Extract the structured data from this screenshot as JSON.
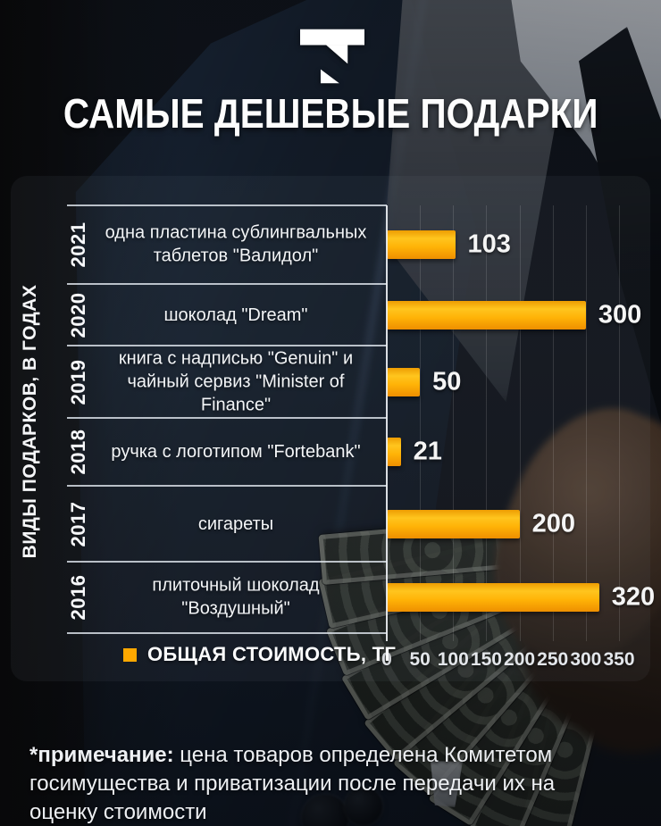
{
  "header": {
    "title": "САМЫЕ ДЕШЕВЫЕ ПОДАРКИ",
    "logo": "tengrinews-t-logo"
  },
  "chart_data": {
    "type": "bar",
    "orientation": "horizontal",
    "title": "САМЫЕ ДЕШЕВЫЕ ПОДАРКИ",
    "ylabel": "ВИДЫ ПОДАРКОВ, В ГОДАХ",
    "xlim": [
      0,
      350
    ],
    "x_ticks": [
      0,
      50,
      100,
      150,
      200,
      250,
      300,
      350
    ],
    "grid": true,
    "legend": {
      "label": "ОБЩАЯ СТОИМОСТЬ, ТГ",
      "color": "#ffa800",
      "position": "bottom"
    },
    "bar_colors": {
      "top": "#ffc51e",
      "bottom": "#ee8f00"
    },
    "categories": [
      "2021",
      "2020",
      "2019",
      "2018",
      "2017",
      "2016"
    ],
    "series": [
      {
        "name": "ОБЩАЯ СТОИМОСТЬ, ТГ",
        "values": [
          103,
          300,
          50,
          21,
          200,
          320
        ]
      }
    ],
    "rows": [
      {
        "year": "2021",
        "gift": "одна пластина сублингвальных таблетов \"Валидол\"",
        "value": 103
      },
      {
        "year": "2020",
        "gift": "шоколад \"Dream\"",
        "value": 300
      },
      {
        "year": "2019",
        "gift": "книга с надписью \"Genuin\" и чайный сервиз \"Minister of Finance\"",
        "value": 50
      },
      {
        "year": "2018",
        "gift": "ручка с логотипом \"Fortebank\"",
        "value": 21
      },
      {
        "year": "2017",
        "gift": "сигареты",
        "value": 200
      },
      {
        "year": "2016",
        "gift": "плиточный шоколад \"Воздушный\"",
        "value": 320
      }
    ]
  },
  "footnote": {
    "bold": "*примечание:",
    "text": " цена товаров определена Комитетом госимущества и приватизации после передачи их на оценку стоимости"
  }
}
